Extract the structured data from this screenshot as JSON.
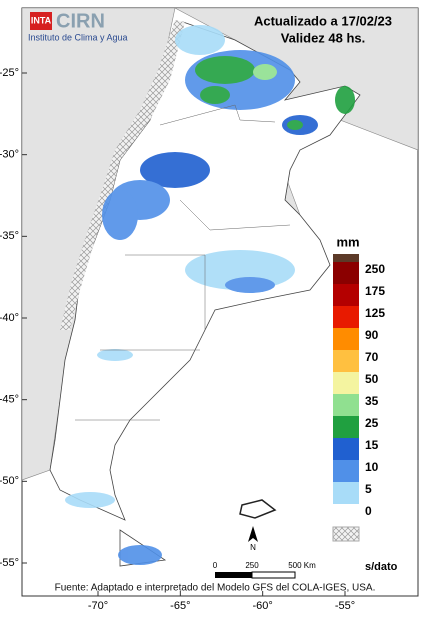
{
  "header": {
    "logo": "INTA",
    "brand": "CIRN",
    "institute": "Instituto de Clima y Agua",
    "title": "Actualizado a 17/02/23",
    "subtitle": "Validez 48 hs."
  },
  "map": {
    "yticks": [
      {
        "value": -25,
        "label": "-25°"
      },
      {
        "value": -30,
        "label": "-30°"
      },
      {
        "value": -35,
        "label": "-35°"
      },
      {
        "value": -40,
        "label": "-40°"
      },
      {
        "value": -45,
        "label": "-45°"
      },
      {
        "value": -50,
        "label": "-50°"
      },
      {
        "value": -55,
        "label": "-55°"
      }
    ],
    "xticks": [
      {
        "value": -70,
        "label": "-70°"
      },
      {
        "value": -65,
        "label": "-65°"
      },
      {
        "value": -60,
        "label": "-60°"
      },
      {
        "value": -55,
        "label": "-55°"
      }
    ]
  },
  "legend": {
    "title": "mm",
    "top_color": "#5c3a28",
    "items": [
      {
        "value": 250,
        "color": "#8b0000"
      },
      {
        "value": 175,
        "color": "#b40000"
      },
      {
        "value": 125,
        "color": "#e81a00"
      },
      {
        "value": 90,
        "color": "#ff8c00"
      },
      {
        "value": 70,
        "color": "#ffc040"
      },
      {
        "value": 50,
        "color": "#f4f4a0"
      },
      {
        "value": 35,
        "color": "#90e090"
      },
      {
        "value": 25,
        "color": "#20a040"
      },
      {
        "value": 15,
        "color": "#2060d0"
      },
      {
        "value": 10,
        "color": "#5090e8"
      },
      {
        "value": 5,
        "color": "#a8dcf8"
      },
      {
        "value": 0,
        "color": "#ffffff"
      }
    ],
    "nodata": "s/dato"
  },
  "scale": {
    "labels": [
      "0",
      "250",
      "500 Km"
    ],
    "north": "N"
  },
  "source": "Fuente: Adaptado e interpretado del Modelo GFS del COLA-IGES, USA."
}
